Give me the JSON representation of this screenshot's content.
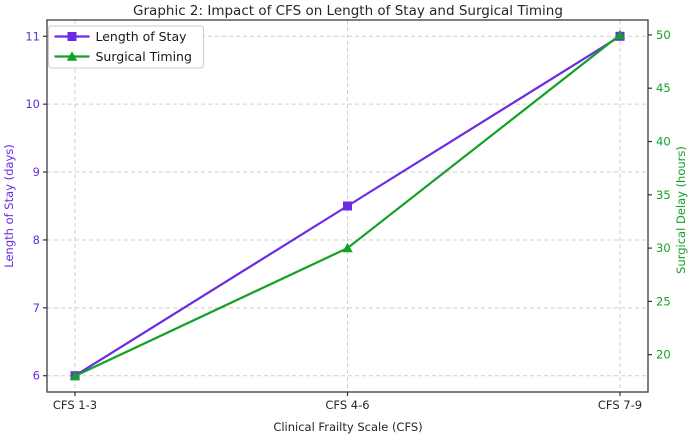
{
  "chart_data": {
    "type": "line",
    "title": "Graphic 2: Impact of CFS on Length of Stay and Surgical Timing",
    "xlabel": "Clinical Frailty Scale (CFS)",
    "categories": [
      "CFS 1-3",
      "CFS 4-6",
      "CFS 7-9"
    ],
    "series": [
      {
        "name": "Length of Stay",
        "axis": "left",
        "values": [
          6,
          8.5,
          11
        ],
        "color": "#6b2be2",
        "marker": "square"
      },
      {
        "name": "Surgical Timing",
        "axis": "right",
        "values": [
          18,
          30,
          50
        ],
        "color": "#15a028",
        "marker": "triangle"
      }
    ],
    "left_axis": {
      "label": "Length of Stay (days)",
      "ticks": [
        6,
        7,
        8,
        9,
        10,
        11
      ],
      "lim": [
        5.76,
        11.24
      ],
      "color": "#6b2be2"
    },
    "right_axis": {
      "label": "Surgical Delay (hours)",
      "ticks": [
        20,
        25,
        30,
        35,
        40,
        45,
        50
      ],
      "lim": [
        16.5,
        51.4
      ],
      "color": "#15a028"
    },
    "grid": true,
    "legend": {
      "position": "upper left",
      "entries": [
        "Length of Stay",
        "Surgical Timing"
      ]
    }
  },
  "style": {
    "spine_color": "#4a4a4a",
    "grid_color": "#cfcfcf",
    "tick_color": "#333333",
    "text_color": "#262626",
    "legend_border": "#cccccc",
    "legend_bg": "#ffffff"
  }
}
